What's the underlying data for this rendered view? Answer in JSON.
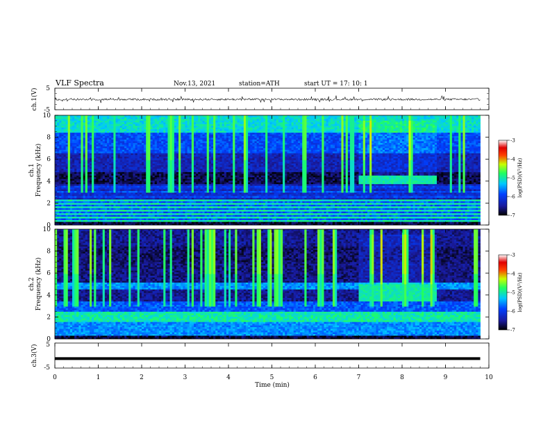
{
  "header": {
    "title": "VLF  Spectra",
    "date": "Nov.13, 2021",
    "station": "station=ATH",
    "start": "start  UT  =    17: 10: 1"
  },
  "chart_data": {
    "type": "heatmap",
    "xlabel": "Time  (min)",
    "xlim": [
      0,
      10
    ],
    "x_ticks": [
      "0",
      "1",
      "2",
      "3",
      "4",
      "5",
      "6",
      "7",
      "8",
      "9",
      "10"
    ],
    "panels": [
      {
        "type": "line",
        "ylabel": "ch.1(V)",
        "ylim": [
          -5,
          5
        ],
        "y_ticks": [
          "5",
          "-5"
        ],
        "signal_level_v": -0.2,
        "spike_amplitude_v": 1.5
      },
      {
        "type": "heatmap",
        "ylabel": "ch.1\nFrequency  (kHz)",
        "ylim": [
          0,
          10
        ],
        "y_ticks": [
          "0",
          "2",
          "4",
          "6",
          "8",
          "10"
        ],
        "colorbar": {
          "label": "log(PSD)(V²/Hz)",
          "range": [
            -7,
            -3
          ],
          "ticks": [
            "-3",
            "-4",
            "-5",
            "-6",
            "-7"
          ]
        },
        "event": {
          "t_start_min": 7.0,
          "t_end_min": 8.8,
          "f_low_khz": 3.8,
          "f_high_khz": 4.5
        }
      },
      {
        "type": "heatmap",
        "ylabel": "ch.2\nFrequency  (kHz)",
        "ylim": [
          0,
          10
        ],
        "y_ticks": [
          "0",
          "2",
          "4",
          "6",
          "8",
          "10"
        ],
        "colorbar": {
          "label": "log(PSD)(V²/Hz)",
          "range": [
            -7,
            -3
          ],
          "ticks": [
            "-3",
            "-4",
            "-5",
            "-6",
            "-7"
          ]
        },
        "event": {
          "t_start_min": 7.0,
          "t_end_min": 8.8,
          "f_low_khz": 3.4,
          "f_high_khz": 5.0
        }
      },
      {
        "type": "line",
        "ylabel": "ch.3(V)",
        "ylim": [
          -5,
          5
        ],
        "y_ticks": [
          "5",
          "-5"
        ],
        "signal_level_v": -1.2
      }
    ]
  }
}
